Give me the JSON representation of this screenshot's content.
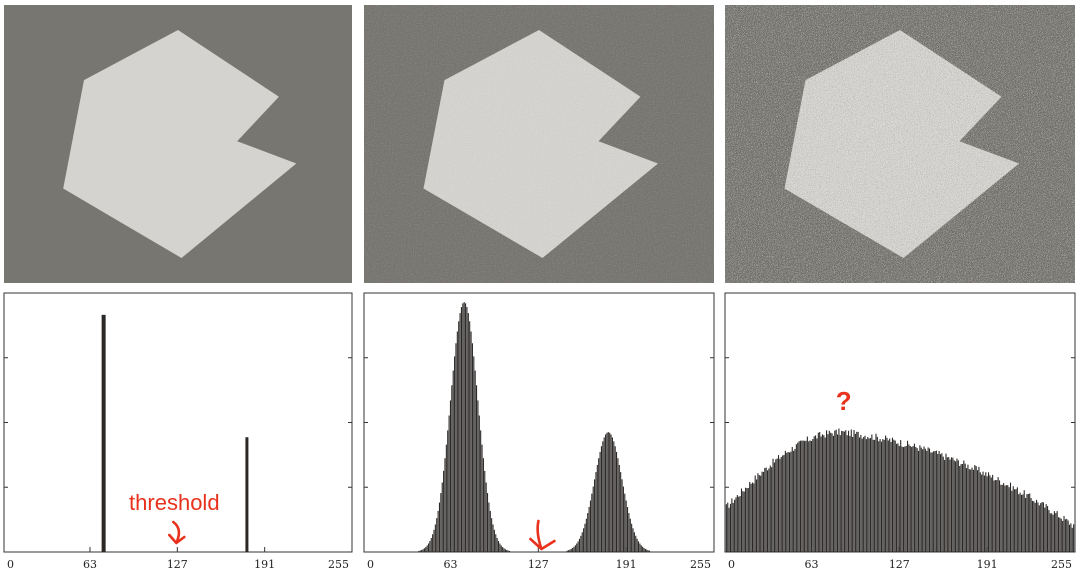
{
  "colors": {
    "background_dark": "#787670",
    "shape_light": "#d4d3cf",
    "bar": "#2b2826",
    "annotation": "#e8321e"
  },
  "images": [
    {
      "noise": "none"
    },
    {
      "noise": "low"
    },
    {
      "noise": "high"
    }
  ],
  "chart_data": [
    {
      "type": "bar",
      "xlim": [
        0,
        255
      ],
      "ylim": [
        0,
        1
      ],
      "xticks": [
        "0",
        "63",
        "127",
        "191",
        "255"
      ],
      "series": [
        {
          "x": [
            73,
            178
          ],
          "values": [
            0.93,
            0.45
          ]
        }
      ],
      "annotation": {
        "text": "threshold",
        "x": 127
      }
    },
    {
      "type": "bar",
      "xlim": [
        0,
        255
      ],
      "ylim": [
        0,
        1
      ],
      "xticks": [
        "0",
        "63",
        "127",
        "191",
        "255"
      ],
      "distribution": [
        {
          "mean": 73,
          "sd": 10,
          "peak": 0.98
        },
        {
          "mean": 178,
          "sd": 10,
          "peak": 0.47
        }
      ],
      "annotation": {
        "text": "",
        "x": 130
      }
    },
    {
      "type": "bar",
      "xlim": [
        0,
        255
      ],
      "ylim": [
        0,
        1
      ],
      "xticks": [
        "0",
        "63",
        "127",
        "191",
        "255"
      ],
      "distribution_shape": {
        "start": 0.17,
        "peak": 0.47,
        "peak_x": 85,
        "end": 0.1
      },
      "annotation": {
        "text": "?",
        "x": 85
      }
    }
  ]
}
